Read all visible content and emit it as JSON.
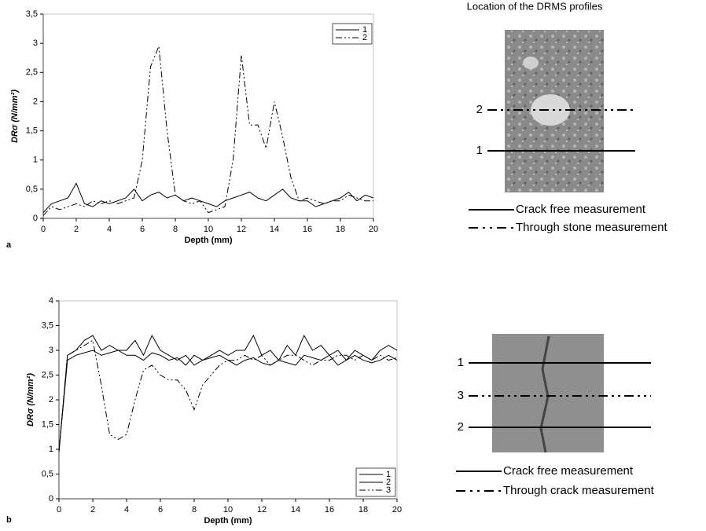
{
  "chart_data": [
    {
      "type": "line",
      "panel_label": "a",
      "x_label": "Depth (mm)",
      "y_label": "DRσ (N/mm²)",
      "x": [
        0,
        0.5,
        1,
        1.5,
        2,
        2.5,
        3,
        3.5,
        4,
        4.5,
        5,
        5.5,
        6,
        6.5,
        7,
        7.5,
        8,
        8.5,
        9,
        9.5,
        10,
        10.5,
        11,
        11.5,
        12,
        12.5,
        13,
        13.5,
        14,
        14.5,
        15,
        15.5,
        16,
        16.5,
        17,
        17.5,
        18,
        18.5,
        19,
        19.5,
        20
      ],
      "series": [
        {
          "name": "1",
          "color": "#000000",
          "style": "solid",
          "values": [
            0.1,
            0.25,
            0.3,
            0.35,
            0.6,
            0.25,
            0.2,
            0.3,
            0.25,
            0.3,
            0.35,
            0.5,
            0.3,
            0.4,
            0.45,
            0.35,
            0.4,
            0.3,
            0.35,
            0.3,
            0.25,
            0.2,
            0.3,
            0.35,
            0.4,
            0.45,
            0.35,
            0.3,
            0.4,
            0.5,
            0.35,
            0.3,
            0.3,
            0.2,
            0.25,
            0.3,
            0.35,
            0.45,
            0.3,
            0.4,
            0.35
          ]
        },
        {
          "name": "2",
          "color": "#000000",
          "style": "dashdot",
          "values": [
            0.05,
            0.2,
            0.15,
            0.2,
            0.25,
            0.2,
            0.3,
            0.25,
            0.3,
            0.25,
            0.3,
            0.35,
            1.0,
            2.6,
            2.95,
            1.5,
            0.4,
            0.3,
            0.25,
            0.3,
            0.1,
            0.15,
            0.2,
            1.0,
            2.8,
            1.6,
            1.6,
            1.2,
            2.0,
            1.4,
            0.7,
            0.3,
            0.35,
            0.3,
            0.25,
            0.3,
            0.3,
            0.4,
            0.35,
            0.3,
            0.3
          ]
        }
      ],
      "xlim": [
        0,
        20
      ],
      "xticks": [
        0,
        2,
        4,
        6,
        8,
        10,
        12,
        14,
        16,
        18,
        20
      ],
      "ylim": [
        0,
        3.5
      ],
      "yticks": [
        0,
        {
          "value": 0.5,
          "label": "0,5"
        },
        1,
        {
          "value": 1.5,
          "label": "1,5"
        },
        2,
        {
          "value": 2.5,
          "label": "2,5"
        },
        3,
        {
          "value": 3.5,
          "label": "3,5"
        }
      ],
      "legend": "upper right",
      "photo_title": "Location of the DRMS profiles",
      "profiles": [
        {
          "label": "2",
          "style": "dashdot"
        },
        {
          "label": "1",
          "style": "solid"
        }
      ],
      "photo_legend": [
        {
          "label": "Crack free measurement",
          "style": "solid"
        },
        {
          "label": "Through stone measurement",
          "style": "dashdot"
        }
      ]
    },
    {
      "type": "line",
      "panel_label": "b",
      "x_label": "Depth (mm)",
      "y_label": "DRσ (N/mm²)",
      "x": [
        0,
        0.5,
        1,
        1.5,
        2,
        2.5,
        3,
        3.5,
        4,
        4.5,
        5,
        5.5,
        6,
        6.5,
        7,
        7.5,
        8,
        8.5,
        9,
        9.5,
        10,
        10.5,
        11,
        11.5,
        12,
        12.5,
        13,
        13.5,
        14,
        14.5,
        15,
        15.5,
        16,
        16.5,
        17,
        17.5,
        18,
        18.5,
        19,
        19.5,
        20
      ],
      "series": [
        {
          "name": "1",
          "color": "#000000",
          "style": "solid",
          "values": [
            0.95,
            2.9,
            3.0,
            3.2,
            3.3,
            3.0,
            3.1,
            3.0,
            3.0,
            3.2,
            2.9,
            3.3,
            3.0,
            2.9,
            2.8,
            2.9,
            2.7,
            2.8,
            2.9,
            3.0,
            2.9,
            3.0,
            3.0,
            3.3,
            2.9,
            3.0,
            2.8,
            3.1,
            2.9,
            3.3,
            3.0,
            3.1,
            2.9,
            3.0,
            2.8,
            3.0,
            2.9,
            2.8,
            3.0,
            3.1,
            3.0
          ]
        },
        {
          "name": "2",
          "color": "#000000",
          "style": "solid",
          "values": [
            0.95,
            2.8,
            2.9,
            2.95,
            3.0,
            2.9,
            2.95,
            3.0,
            2.9,
            2.9,
            2.8,
            2.95,
            2.9,
            2.8,
            2.85,
            2.7,
            2.9,
            2.8,
            2.85,
            2.9,
            2.8,
            2.7,
            2.8,
            2.85,
            2.75,
            2.7,
            2.8,
            2.75,
            2.7,
            2.9,
            2.85,
            2.8,
            2.9,
            2.7,
            2.8,
            2.9,
            2.8,
            2.75,
            2.8,
            2.9,
            2.8
          ]
        },
        {
          "name": "3",
          "color": "#000000",
          "style": "dashdot",
          "values": [
            0.95,
            2.9,
            3.0,
            3.1,
            3.2,
            2.3,
            1.3,
            1.2,
            1.3,
            2.0,
            2.6,
            2.7,
            2.5,
            2.4,
            2.4,
            2.2,
            1.8,
            2.3,
            2.5,
            2.7,
            2.8,
            2.8,
            2.9,
            2.8,
            2.9,
            2.7,
            2.8,
            2.9,
            2.9,
            2.8,
            2.7,
            2.8,
            2.8,
            2.9,
            2.9,
            2.8,
            2.9,
            2.8,
            2.9,
            2.8,
            2.85
          ]
        }
      ],
      "xlim": [
        0,
        20
      ],
      "xticks": [
        0,
        2,
        4,
        6,
        8,
        10,
        12,
        14,
        16,
        18,
        20
      ],
      "ylim": [
        0,
        4
      ],
      "yticks": [
        0,
        {
          "value": 0.5,
          "label": "0,5"
        },
        1,
        {
          "value": 1.5,
          "label": "1,5"
        },
        2,
        {
          "value": 2.5,
          "label": "2,5"
        },
        3,
        {
          "value": 3.5,
          "label": "3,5"
        },
        4
      ],
      "legend": "lower right",
      "profiles": [
        {
          "label": "1",
          "style": "solid"
        },
        {
          "label": "3",
          "style": "dashdot"
        },
        {
          "label": "2",
          "style": "solid"
        }
      ],
      "photo_legend": [
        {
          "label": "Crack free measurement",
          "style": "solid"
        },
        {
          "label": "Through crack measurement",
          "style": "dashdot"
        }
      ]
    }
  ]
}
